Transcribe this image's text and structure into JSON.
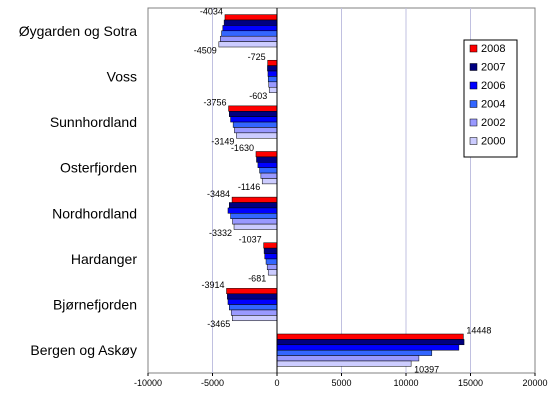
{
  "chart_data": {
    "type": "bar",
    "orientation": "horizontal",
    "title": "",
    "xlabel": "",
    "ylabel": "",
    "xlim": [
      -10000,
      20000
    ],
    "x_ticks": [
      "-10000",
      "-5000",
      "0",
      "5000",
      "10000",
      "15000",
      "20000"
    ],
    "grid": "vertical gridlines",
    "legend_position": "right",
    "categories": [
      "Øygarden og Sotra",
      "Voss",
      "Sunnhordland",
      "Osterfjorden",
      "Nordhordland",
      "Hardanger",
      "Bjørnefjorden",
      "Bergen og Askøy"
    ],
    "series": [
      {
        "name": "2008",
        "color": "#ff0000",
        "values": [
          -4034,
          -725,
          -3756,
          -1630,
          -3484,
          -1037,
          -3914,
          14448
        ]
      },
      {
        "name": "2007",
        "color": "#000080",
        "values": [
          -4100,
          -740,
          -3700,
          -1590,
          -3700,
          -1000,
          -3850,
          14500
        ]
      },
      {
        "name": "2006",
        "color": "#0000ff",
        "values": [
          -4200,
          -700,
          -3600,
          -1480,
          -3800,
          -950,
          -3800,
          14100
        ]
      },
      {
        "name": "2004",
        "color": "#3366ff",
        "values": [
          -4300,
          -680,
          -3400,
          -1350,
          -3600,
          -850,
          -3700,
          12000
        ]
      },
      {
        "name": "2002",
        "color": "#9999ff",
        "values": [
          -4400,
          -640,
          -3300,
          -1250,
          -3450,
          -760,
          -3550,
          11000
        ]
      },
      {
        "name": "2000",
        "color": "#ccccff",
        "values": [
          -4509,
          -603,
          -3149,
          -1146,
          -3332,
          -681,
          -3465,
          10397
        ]
      }
    ],
    "data_labels": [
      {
        "category": 0,
        "series": 0,
        "text": "-4034"
      },
      {
        "category": 0,
        "series": 5,
        "text": "-4509"
      },
      {
        "category": 1,
        "series": 0,
        "text": "-725"
      },
      {
        "category": 1,
        "series": 5,
        "text": "-603"
      },
      {
        "category": 2,
        "series": 0,
        "text": "-3756"
      },
      {
        "category": 2,
        "series": 5,
        "text": "-3149"
      },
      {
        "category": 3,
        "series": 0,
        "text": "-1630"
      },
      {
        "category": 3,
        "series": 5,
        "text": "-1146"
      },
      {
        "category": 4,
        "series": 0,
        "text": "-3484"
      },
      {
        "category": 4,
        "series": 5,
        "text": "-3332"
      },
      {
        "category": 5,
        "series": 0,
        "text": "-1037"
      },
      {
        "category": 5,
        "series": 5,
        "text": "-681"
      },
      {
        "category": 6,
        "series": 0,
        "text": "-3914"
      },
      {
        "category": 6,
        "series": 5,
        "text": "-3465"
      },
      {
        "category": 7,
        "series": 0,
        "text": "14448"
      },
      {
        "category": 7,
        "series": 5,
        "text": "10397"
      }
    ]
  }
}
